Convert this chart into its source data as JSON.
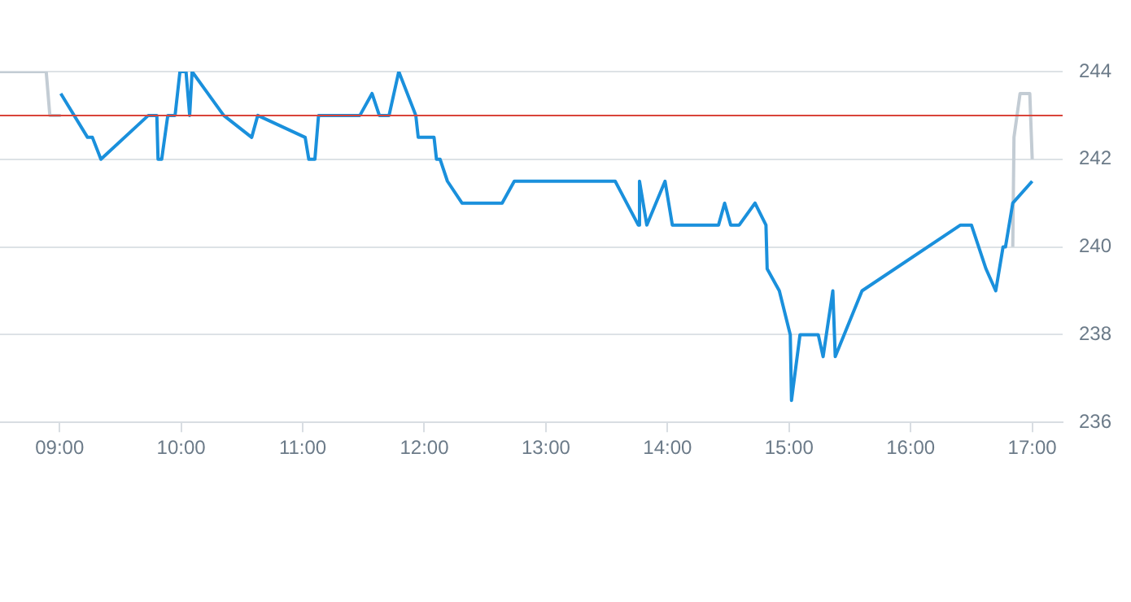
{
  "chart_data": {
    "type": "line",
    "xlim": [
      8.51,
      17.25
    ],
    "ylim": [
      236,
      244
    ],
    "xticks": [
      {
        "value": 9,
        "label": "09:00"
      },
      {
        "value": 10,
        "label": "10:00"
      },
      {
        "value": 11,
        "label": "11:00"
      },
      {
        "value": 12,
        "label": "12:00"
      },
      {
        "value": 13,
        "label": "13:00"
      },
      {
        "value": 14,
        "label": "14:00"
      },
      {
        "value": 15,
        "label": "15:00"
      },
      {
        "value": 16,
        "label": "16:00"
      },
      {
        "value": 17,
        "label": "17:00"
      }
    ],
    "yticks": [
      236,
      238,
      240,
      242,
      244
    ],
    "grid": "y",
    "legend": false,
    "marker": "none",
    "line_style": "solid",
    "ref_lines": [
      {
        "axis": "y",
        "value": 243,
        "color": "#d9443a"
      }
    ],
    "series": [
      {
        "color": "#c3ccd4",
        "x": [
          8.51,
          8.89,
          8.92,
          9.01
        ],
        "values": [
          244,
          244,
          243,
          243
        ]
      },
      {
        "color": "#c3ccd4",
        "x": [
          16.84,
          16.85,
          16.9,
          16.98,
          17.0
        ],
        "values": [
          240,
          242.5,
          243.5,
          243.5,
          242
        ]
      },
      {
        "color": "#1a90dc",
        "x": [
          9.01,
          9.23,
          9.27,
          9.34,
          9.73,
          9.8,
          9.81,
          9.84,
          9.89,
          9.95,
          9.99,
          10.04,
          10.07,
          10.09,
          10.35,
          10.58,
          10.63,
          11.02,
          11.05,
          11.1,
          11.13,
          11.47,
          11.57,
          11.63,
          11.71,
          11.79,
          11.93,
          11.95,
          12.08,
          12.1,
          12.13,
          12.19,
          12.31,
          12.64,
          12.74,
          13.57,
          13.76,
          13.77,
          13.83,
          13.98,
          14.04,
          14.42,
          14.47,
          14.52,
          14.59,
          14.72,
          14.81,
          14.82,
          14.92,
          15.01,
          15.02,
          15.09,
          15.24,
          15.28,
          15.36,
          15.38,
          15.6,
          16.41,
          16.5,
          16.62,
          16.7,
          16.76,
          16.78,
          16.84,
          17.0
        ],
        "values": [
          243.5,
          242.5,
          242.5,
          242,
          243,
          243,
          242,
          242,
          243,
          243,
          244,
          244,
          243,
          244,
          243,
          242.5,
          243,
          242.5,
          242,
          242,
          243,
          243,
          243.5,
          243,
          243,
          244,
          243,
          242.5,
          242.5,
          242,
          242,
          241.5,
          241,
          241,
          241.5,
          241.5,
          240.5,
          241.5,
          240.5,
          241.5,
          240.5,
          240.5,
          241,
          240.5,
          240.5,
          241,
          240.5,
          239.5,
          239,
          238,
          236.5,
          238,
          238,
          237.5,
          239,
          237.5,
          239,
          240.5,
          240.5,
          239.5,
          239,
          240,
          240,
          241,
          241.5
        ]
      }
    ]
  }
}
